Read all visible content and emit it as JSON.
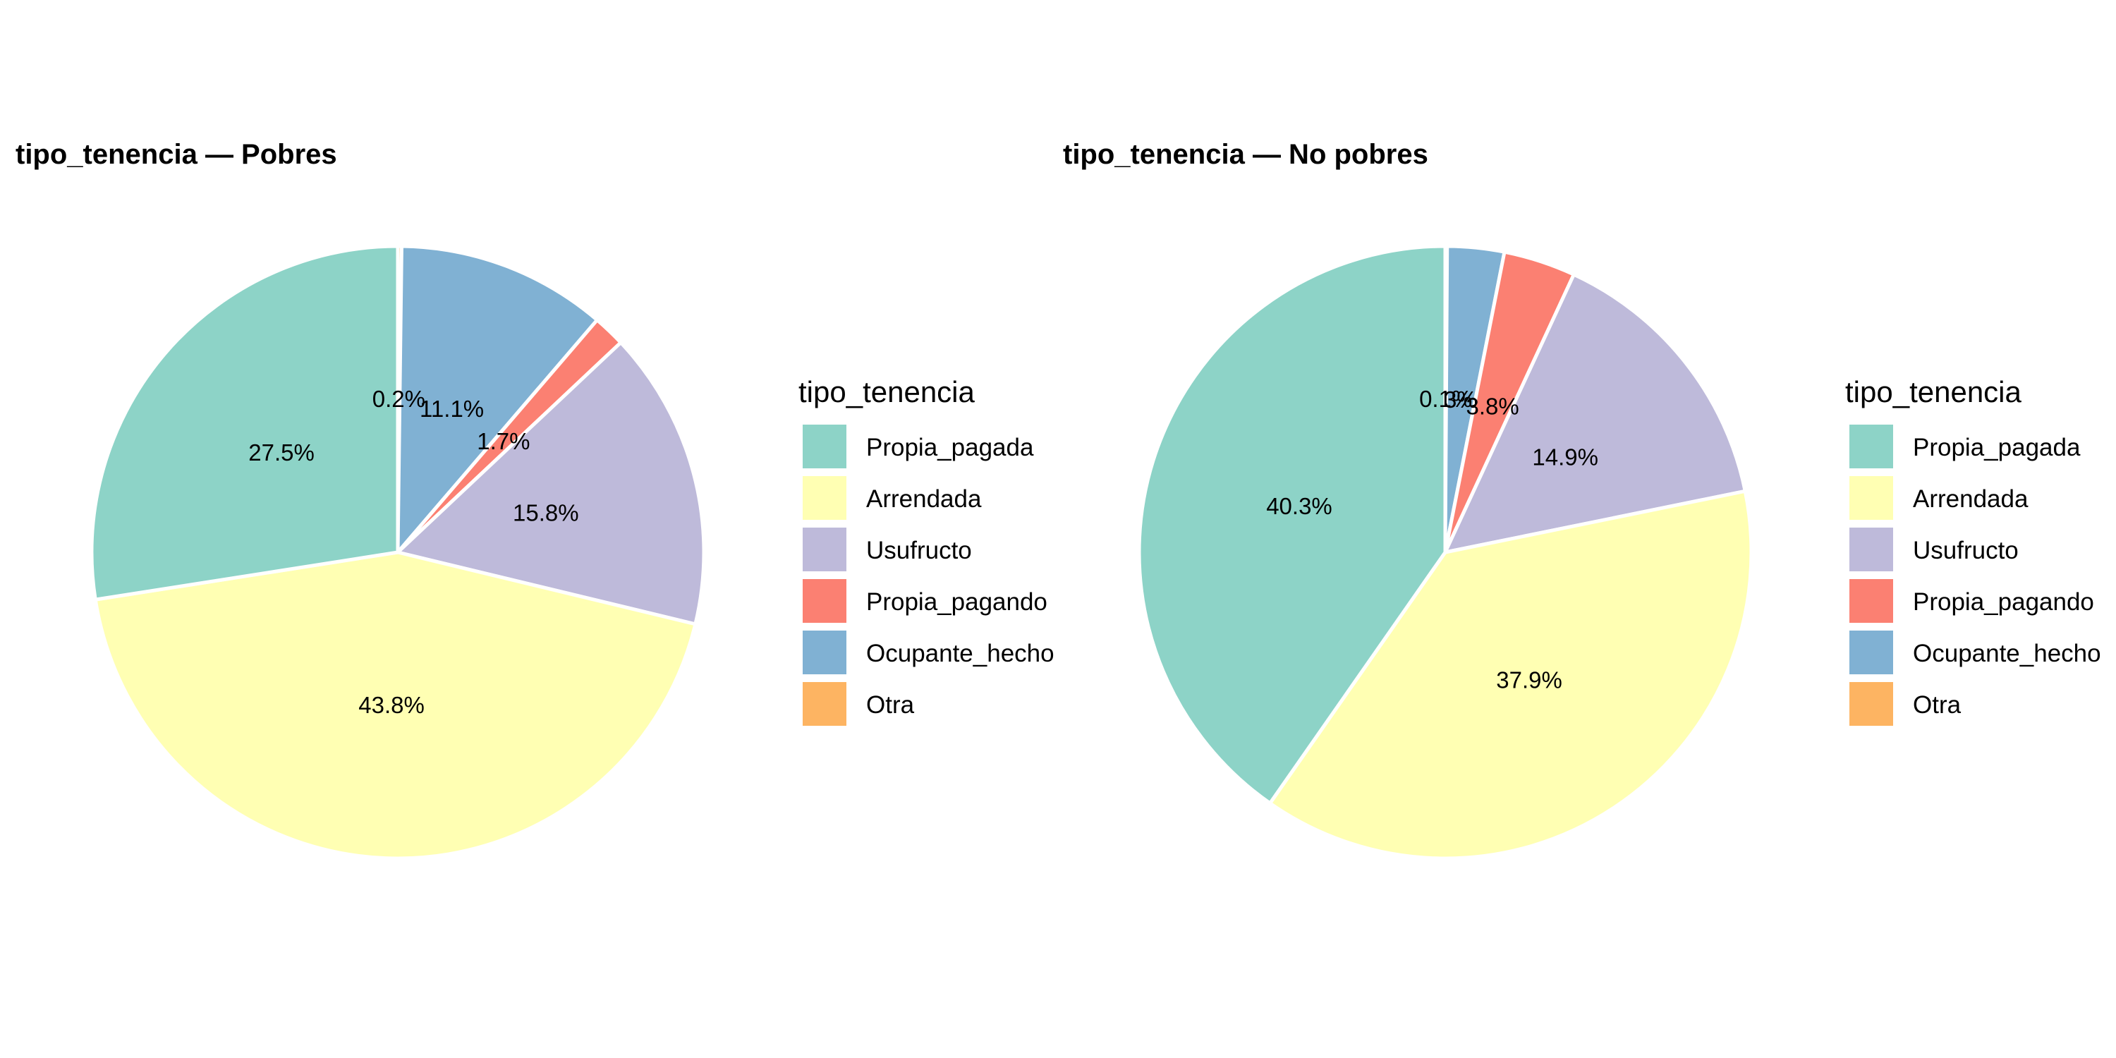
{
  "chart_data": [
    {
      "type": "pie",
      "title": "tipo_tenencia — Pobres",
      "legend_title": "tipo_tenencia",
      "legend_position": "right",
      "categories": [
        "Propia_pagada",
        "Arrendada",
        "Usufructo",
        "Propia_pagando",
        "Ocupante_hecho",
        "Otra"
      ],
      "values": [
        27.5,
        43.8,
        15.8,
        1.7,
        11.1,
        0.2
      ],
      "labels": [
        "27.5%",
        "43.8%",
        "15.8%",
        "1.7%",
        "11.1%",
        "0.2%"
      ],
      "slice_order": [
        5,
        4,
        3,
        2,
        1,
        0
      ]
    },
    {
      "type": "pie",
      "title": "tipo_tenencia — No pobres",
      "legend_title": "tipo_tenencia",
      "legend_position": "right",
      "categories": [
        "Propia_pagada",
        "Arrendada",
        "Usufructo",
        "Propia_pagando",
        "Ocupante_hecho",
        "Otra"
      ],
      "values": [
        40.3,
        37.9,
        14.9,
        3.8,
        3.0,
        0.1
      ],
      "labels": [
        "40.3%",
        "37.9%",
        "14.9%",
        "3.8%",
        "3%",
        "0.1%"
      ],
      "slice_order": [
        5,
        4,
        3,
        2,
        1,
        0
      ]
    }
  ],
  "colors": {
    "Propia_pagada": "#8dd3c7",
    "Arrendada": "#ffffb3",
    "Usufructo": "#bebada",
    "Propia_pagando": "#fb8072",
    "Ocupante_hecho": "#80b1d3",
    "Otra": "#fdb462"
  }
}
